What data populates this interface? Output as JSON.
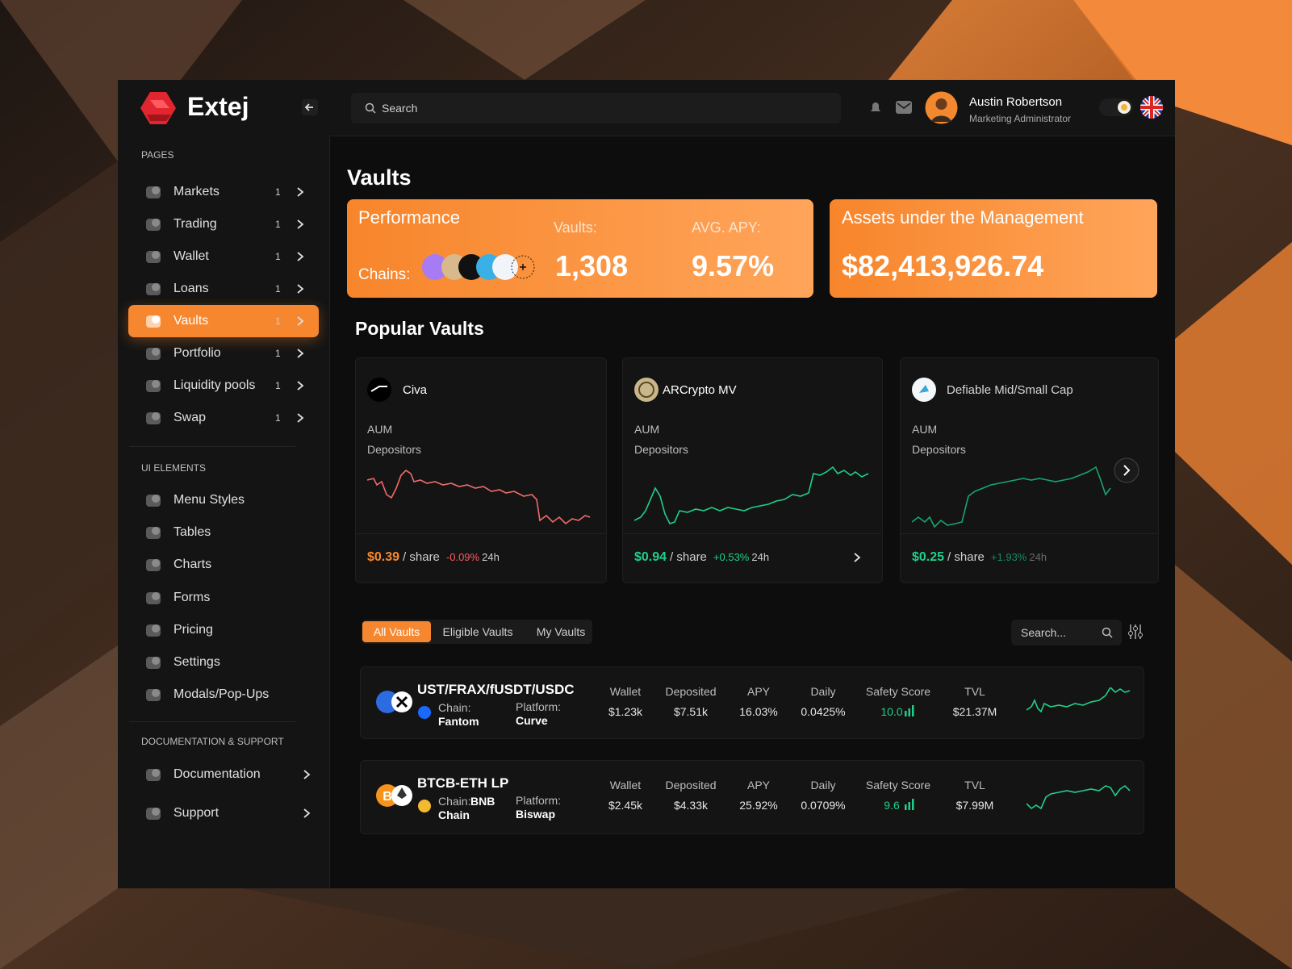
{
  "brand": "Extej",
  "search_placeholder": "Search",
  "user": {
    "name": "Austin Robertson",
    "role": "Marketing Administrator"
  },
  "sidebar": {
    "sections": [
      {
        "title": "PAGES",
        "items": [
          {
            "label": "Markets",
            "badge": "1"
          },
          {
            "label": "Trading",
            "badge": "1"
          },
          {
            "label": "Wallet",
            "badge": "1"
          },
          {
            "label": "Loans",
            "badge": "1"
          },
          {
            "label": "Vaults",
            "badge": "1",
            "active": true
          },
          {
            "label": "Portfolio",
            "badge": "1"
          },
          {
            "label": "Liquidity pools",
            "badge": "1"
          },
          {
            "label": "Swap",
            "badge": "1"
          }
        ]
      },
      {
        "title": "UI ELEMENTS",
        "items": [
          {
            "label": "Menu Styles"
          },
          {
            "label": "Tables"
          },
          {
            "label": "Charts"
          },
          {
            "label": "Forms"
          },
          {
            "label": "Pricing"
          },
          {
            "label": "Settings"
          },
          {
            "label": "Modals/Pop-Ups"
          }
        ]
      },
      {
        "title": "DOCUMENTATION & SUPPORT",
        "items": [
          {
            "label": "Documentation"
          },
          {
            "label": "Support"
          }
        ]
      }
    ]
  },
  "page_title": "Vaults",
  "performance": {
    "title": "Performance",
    "chains_label": "Chains:",
    "vaults_label": "Vaults:",
    "vaults_value": "1,308",
    "apy_label": "AVG. APY:",
    "apy_value": "9.57%"
  },
  "assets": {
    "title": "Assets under the Management",
    "value": "$82,413,926.74"
  },
  "popular": {
    "title": "Popular Vaults",
    "cards": [
      {
        "name": "Civa",
        "aum_label": "AUM",
        "depositors_label": "Depositors",
        "price": "$0.39",
        "per_share": "/ share",
        "change": "-0.09%",
        "period": "24h",
        "price_color": "#f7892f",
        "change_color": "#ff5b5b",
        "line_color": "#f26b6b"
      },
      {
        "name": "ARCrypto MV",
        "aum_label": "AUM",
        "depositors_label": "Depositors",
        "price": "$0.94",
        "per_share": "/ share",
        "change": "+0.53%",
        "period": "24h",
        "price_color": "#1fd08a",
        "change_color": "#1fd08a",
        "line_color": "#1fd08a"
      },
      {
        "name": "Defiable Mid/Small Cap",
        "aum_label": "AUM",
        "depositors_label": "Depositors",
        "price": "$0.25",
        "per_share": "/ share",
        "change": "+1.93%",
        "period": "24h",
        "price_color": "#1fd08a",
        "change_color": "#178a5d",
        "line_color": "#18a56d"
      }
    ]
  },
  "tabs": [
    "All Vaults",
    "Eligible Vaults",
    "My Vaults"
  ],
  "table_search": "Search...",
  "vaults": [
    {
      "name": "UST/FRAX/fUSDT/USDC",
      "chain_label": "Chain:",
      "chain": "Fantom",
      "platform_label": "Platform:",
      "platform": "Curve",
      "columns": [
        {
          "label": "Wallet",
          "value": "$1.23k"
        },
        {
          "label": "Deposited",
          "value": "$7.51k"
        },
        {
          "label": "APY",
          "value": "16.03%"
        },
        {
          "label": "Daily",
          "value": "0.0425%"
        },
        {
          "label": "Safety Score",
          "value": "10.0"
        },
        {
          "label": "TVL",
          "value": "$21.37M"
        }
      ]
    },
    {
      "name": "BTCB-ETH LP",
      "chain_label": "Chain:",
      "chain": "BNB Chain",
      "platform_label": "Platform:",
      "platform": "Biswap",
      "columns": [
        {
          "label": "Wallet",
          "value": "$2.45k"
        },
        {
          "label": "Deposited",
          "value": "$4.33k"
        },
        {
          "label": "APY",
          "value": "25.92%"
        },
        {
          "label": "Daily",
          "value": "0.0709%"
        },
        {
          "label": "Safety Score",
          "value": "9.6"
        },
        {
          "label": "TVL",
          "value": "$7.99M"
        }
      ]
    }
  ]
}
